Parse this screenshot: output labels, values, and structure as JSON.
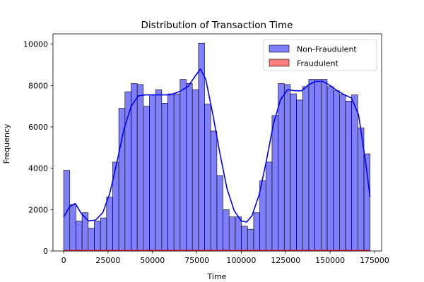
{
  "chart_data": {
    "type": "histogram",
    "title": "Distribution of Transaction Time",
    "xlabel": "Time",
    "ylabel": "Frequency",
    "xlim": [
      -6000,
      179000
    ],
    "ylim": [
      0,
      10500
    ],
    "xticks": [
      0,
      25000,
      50000,
      75000,
      100000,
      125000,
      150000,
      175000
    ],
    "yticks": [
      0,
      2000,
      4000,
      6000,
      8000,
      10000
    ],
    "grid": false,
    "legend_position": "top-right",
    "bin_edges": [
      0,
      3450,
      6900,
      10350,
      13800,
      17250,
      20700,
      24150,
      27600,
      31050,
      34500,
      37950,
      41400,
      44850,
      48300,
      51750,
      55200,
      58650,
      62100,
      65550,
      69000,
      72450,
      75900,
      79350,
      82800,
      86250,
      89700,
      93150,
      96600,
      100050,
      103500,
      106950,
      110400,
      113850,
      117300,
      120750,
      124200,
      127650,
      131100,
      134550,
      138000,
      141450,
      144900,
      148350,
      151800,
      155250,
      158700,
      162150,
      165600,
      169050,
      172500
    ],
    "series": [
      {
        "name": "Non-Fraudulent",
        "color": "#0000ff",
        "counts": [
          3900,
          2250,
          1450,
          1850,
          1100,
          1450,
          1600,
          2600,
          4300,
          6900,
          7700,
          8100,
          8050,
          7000,
          7550,
          7800,
          7150,
          7600,
          7600,
          8300,
          8100,
          7800,
          10050,
          7100,
          5800,
          3650,
          2000,
          1650,
          1650,
          1200,
          1050,
          1850,
          3400,
          4300,
          6550,
          8100,
          8050,
          7600,
          7300,
          7950,
          8300,
          8300,
          8300,
          7950,
          7750,
          7550,
          7250,
          7550,
          5950,
          4700
        ],
        "kde": [
          [
            0,
            1650
          ],
          [
            3500,
            2150
          ],
          [
            6500,
            2300
          ],
          [
            10000,
            1800
          ],
          [
            14000,
            1450
          ],
          [
            18000,
            1500
          ],
          [
            22000,
            1850
          ],
          [
            26000,
            2800
          ],
          [
            30000,
            4300
          ],
          [
            34000,
            5900
          ],
          [
            38000,
            7000
          ],
          [
            42000,
            7500
          ],
          [
            46000,
            7550
          ],
          [
            50000,
            7550
          ],
          [
            55000,
            7550
          ],
          [
            60000,
            7550
          ],
          [
            65000,
            7700
          ],
          [
            70000,
            7950
          ],
          [
            74000,
            8450
          ],
          [
            77000,
            8800
          ],
          [
            80000,
            8300
          ],
          [
            84000,
            6600
          ],
          [
            88000,
            4700
          ],
          [
            92000,
            3000
          ],
          [
            96000,
            1950
          ],
          [
            100000,
            1450
          ],
          [
            103000,
            1400
          ],
          [
            106000,
            1700
          ],
          [
            110000,
            2700
          ],
          [
            114000,
            4300
          ],
          [
            118000,
            6100
          ],
          [
            122000,
            7300
          ],
          [
            126000,
            7800
          ],
          [
            130000,
            7750
          ],
          [
            134000,
            7750
          ],
          [
            138000,
            8050
          ],
          [
            142000,
            8200
          ],
          [
            146000,
            8200
          ],
          [
            150000,
            8000
          ],
          [
            154000,
            7750
          ],
          [
            158000,
            7550
          ],
          [
            162000,
            7400
          ],
          [
            166000,
            6600
          ],
          [
            170000,
            4300
          ],
          [
            172500,
            2600
          ]
        ]
      },
      {
        "name": "Fraudulent",
        "color": "#ff0000",
        "counts": [
          12,
          8,
          6,
          4,
          14,
          4,
          3,
          2,
          6,
          12,
          8,
          5,
          22,
          6,
          5,
          4,
          3,
          6,
          4,
          5,
          4,
          10,
          5,
          6,
          4,
          4,
          4,
          4,
          10,
          3,
          2,
          3,
          4,
          6,
          4,
          10,
          5,
          4,
          6,
          4,
          6,
          4,
          4,
          4,
          3,
          5,
          3,
          4,
          4,
          3
        ]
      }
    ]
  }
}
